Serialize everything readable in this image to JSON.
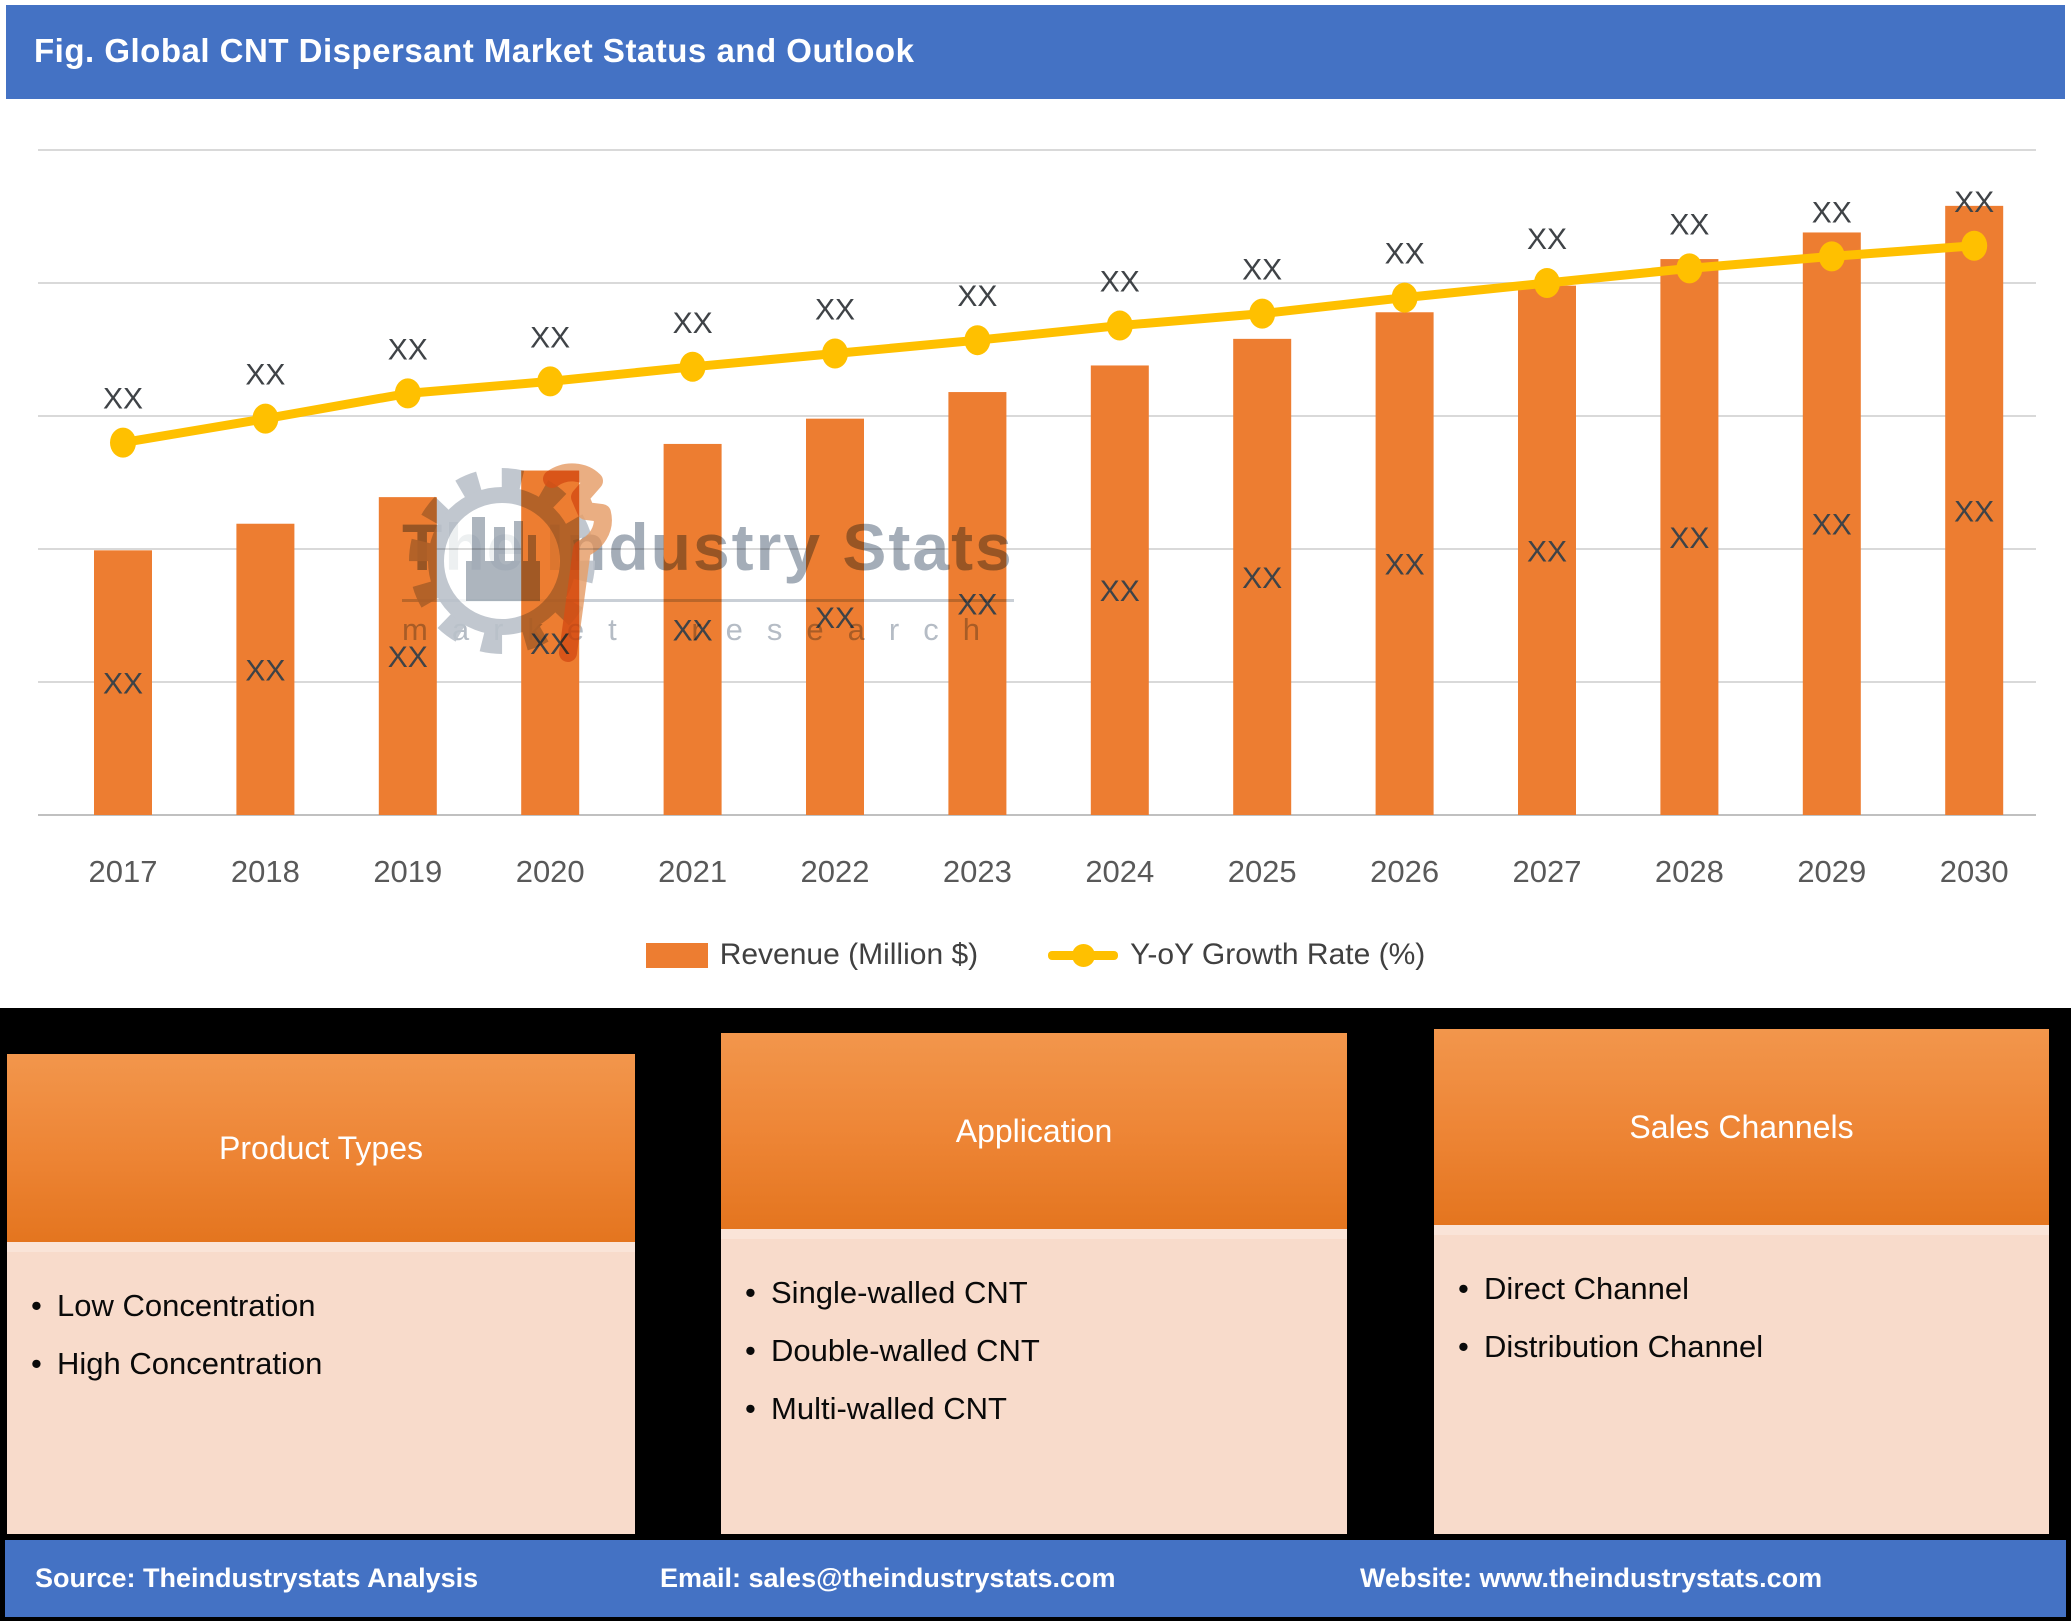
{
  "title_bar": {
    "text": "Fig. Global CNT Dispersant Market Status and Outlook",
    "bg_color": "#4472C4",
    "text_color": "#FFFFFF"
  },
  "chart_data": {
    "type": "bar",
    "subtype": "bar-line-combo",
    "categories": [
      "2017",
      "2018",
      "2019",
      "2020",
      "2021",
      "2022",
      "2023",
      "2024",
      "2025",
      "2026",
      "2027",
      "2028",
      "2029",
      "2030"
    ],
    "series": [
      {
        "name": "Revenue (Million $)",
        "type": "bar",
        "color": "#ED7D31",
        "values": [
          1.99,
          2.19,
          2.39,
          2.59,
          2.79,
          2.98,
          3.18,
          3.38,
          3.58,
          3.78,
          3.98,
          4.18,
          4.38,
          4.58
        ],
        "data_labels": [
          "XX",
          "XX",
          "XX",
          "XX",
          "XX",
          "XX",
          "XX",
          "XX",
          "XX",
          "XX",
          "XX",
          "XX",
          "XX",
          "XX"
        ]
      },
      {
        "name": "Y-oY Growth Rate (%)",
        "type": "line",
        "color": "#FFC000",
        "values": [
          2.8,
          2.98,
          3.17,
          3.26,
          3.37,
          3.47,
          3.57,
          3.68,
          3.77,
          3.89,
          4.0,
          4.11,
          4.2,
          4.28
        ],
        "data_labels": [
          "XX",
          "XX",
          "XX",
          "XX",
          "XX",
          "XX",
          "XX",
          "XX",
          "XX",
          "XX",
          "XX",
          "XX",
          "XX",
          "XX"
        ]
      }
    ],
    "title": "",
    "xlabel": "",
    "ylabel": "",
    "ylim": [
      0,
      5
    ],
    "y_axis_labels_visible": false,
    "grid": true,
    "grid_color": "#D9D9D9",
    "axis_color": "#C0C0C0",
    "tick_label_color": "#595959",
    "data_label_color": "#3F4347",
    "legend_position": "bottom"
  },
  "watermark": {
    "icon": "industry-gear-icon",
    "line1": "The Industry Stats",
    "line2": "market research"
  },
  "panels": [
    {
      "title": "Product Types",
      "items": [
        "Low Concentration",
        "High Concentration"
      ]
    },
    {
      "title": "Application",
      "items": [
        "Single-walled CNT",
        "Double-walled CNT",
        "Multi-walled CNT"
      ]
    },
    {
      "title": "Sales Channels",
      "items": [
        "Direct Channel",
        "Distribution Channel"
      ]
    }
  ],
  "footer": {
    "source": "Source: Theindustrystats Analysis",
    "email": "Email: sales@theindustrystats.com",
    "website": "Website: www.theindustrystats.com"
  }
}
